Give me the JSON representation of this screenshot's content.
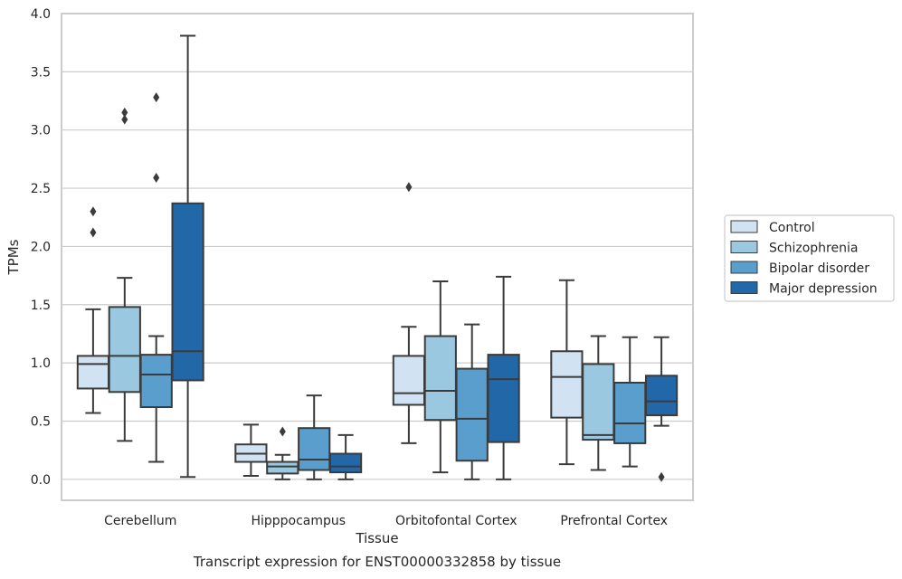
{
  "chart_data": {
    "type": "box",
    "xlabel": "Tissue",
    "ylabel": "TPMs",
    "caption": "Transcript expression for ENST00000332858 by tissue",
    "ylim": [
      -0.18,
      4.0
    ],
    "yticks": [
      "0.0",
      "0.5",
      "1.0",
      "1.5",
      "2.0",
      "2.5",
      "3.0",
      "3.5",
      "4.0"
    ],
    "grid": true,
    "legend_position": "right",
    "categories": [
      "Cerebellum",
      "Hipppocampus",
      "Orbitofontal Cortex",
      "Prefrontal Cortex"
    ],
    "series": [
      {
        "name": "Control",
        "color": "#d1e2f2",
        "boxes": [
          {
            "whislo": 0.57,
            "q1": 0.78,
            "med": 0.99,
            "q3": 1.06,
            "whishi": 1.46,
            "fliers": [
              2.12,
              2.3
            ]
          },
          {
            "whislo": 0.03,
            "q1": 0.15,
            "med": 0.22,
            "q3": 0.3,
            "whishi": 0.47,
            "fliers": []
          },
          {
            "whislo": 0.31,
            "q1": 0.64,
            "med": 0.74,
            "q3": 1.06,
            "whishi": 1.31,
            "fliers": [
              2.51
            ]
          },
          {
            "whislo": 0.13,
            "q1": 0.53,
            "med": 0.88,
            "q3": 1.1,
            "whishi": 1.71,
            "fliers": []
          }
        ]
      },
      {
        "name": "Schizophrenia",
        "color": "#9ac8e0",
        "boxes": [
          {
            "whislo": 0.33,
            "q1": 0.75,
            "med": 1.06,
            "q3": 1.48,
            "whishi": 1.73,
            "fliers": [
              3.09,
              3.15
            ]
          },
          {
            "whislo": 0.0,
            "q1": 0.05,
            "med": 0.11,
            "q3": 0.15,
            "whishi": 0.21,
            "fliers": [
              0.41
            ]
          },
          {
            "whislo": 0.06,
            "q1": 0.51,
            "med": 0.76,
            "q3": 1.23,
            "whishi": 1.7,
            "fliers": []
          },
          {
            "whislo": 0.08,
            "q1": 0.34,
            "med": 0.38,
            "q3": 0.99,
            "whishi": 1.23,
            "fliers": []
          }
        ]
      },
      {
        "name": "Bipolar disorder",
        "color": "#5a9ecd",
        "boxes": [
          {
            "whislo": 0.15,
            "q1": 0.62,
            "med": 0.9,
            "q3": 1.07,
            "whishi": 1.23,
            "fliers": [
              2.59,
              3.28
            ]
          },
          {
            "whislo": 0.0,
            "q1": 0.08,
            "med": 0.17,
            "q3": 0.44,
            "whishi": 0.72,
            "fliers": []
          },
          {
            "whislo": 0.0,
            "q1": 0.16,
            "med": 0.52,
            "q3": 0.95,
            "whishi": 1.33,
            "fliers": []
          },
          {
            "whislo": 0.11,
            "q1": 0.31,
            "med": 0.48,
            "q3": 0.83,
            "whishi": 1.22,
            "fliers": []
          }
        ]
      },
      {
        "name": "Major depression",
        "color": "#2267a8",
        "boxes": [
          {
            "whislo": 0.02,
            "q1": 0.85,
            "med": 1.1,
            "q3": 2.37,
            "whishi": 3.81,
            "fliers": []
          },
          {
            "whislo": 0.0,
            "q1": 0.06,
            "med": 0.11,
            "q3": 0.22,
            "whishi": 0.38,
            "fliers": []
          },
          {
            "whislo": 0.0,
            "q1": 0.32,
            "med": 0.86,
            "q3": 1.07,
            "whishi": 1.74,
            "fliers": []
          },
          {
            "whislo": 0.46,
            "q1": 0.55,
            "med": 0.67,
            "q3": 0.89,
            "whishi": 1.22,
            "fliers": [
              0.02
            ]
          }
        ]
      }
    ]
  }
}
